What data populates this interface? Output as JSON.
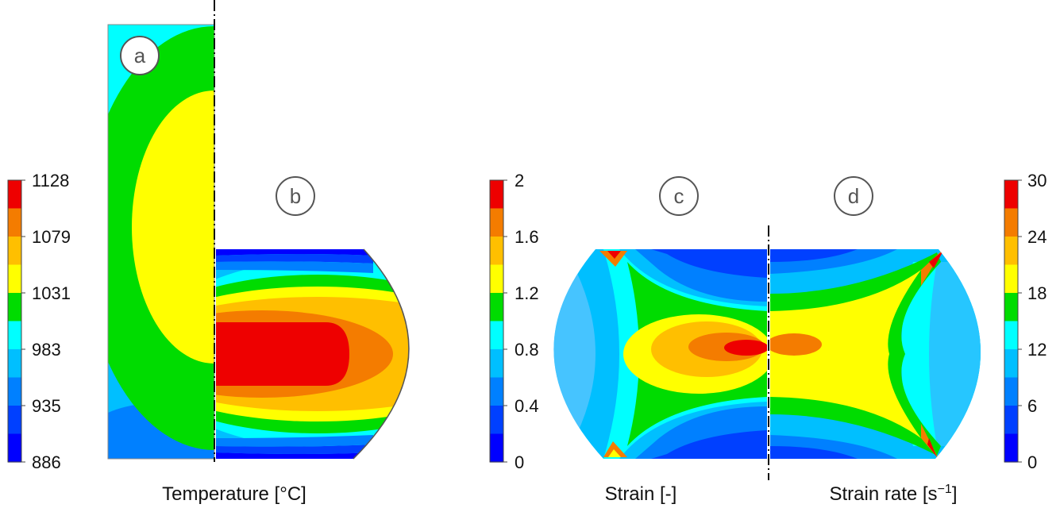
{
  "panels": {
    "a": "a",
    "b": "b",
    "c": "c",
    "d": "d"
  },
  "captions": {
    "temperature": "Temperature [°C]",
    "strain": "Strain [-]",
    "strain_rate_prefix": "Strain rate [s",
    "strain_rate_exp": "−1",
    "strain_rate_suffix": "]"
  },
  "temperature_scale": {
    "ticks": [
      "1128",
      "1079",
      "1031",
      "983",
      "935",
      "886"
    ],
    "colors": [
      "#ee0000",
      "#f47c00",
      "#ffbf00",
      "#ffff00",
      "#00dc00",
      "#00ffff",
      "#00bfff",
      "#0080ff",
      "#0040ff",
      "#0000ff"
    ]
  },
  "strain_scale": {
    "ticks": [
      "2",
      "1.6",
      "1.2",
      "0.8",
      "0.4",
      "0"
    ],
    "colors": [
      "#ee0000",
      "#f47c00",
      "#ffbf00",
      "#ffff00",
      "#00dc00",
      "#00ffff",
      "#00bfff",
      "#0080ff",
      "#0040ff",
      "#0000ff"
    ]
  },
  "strain_rate_scale": {
    "ticks": [
      "30",
      "24",
      "18",
      "12",
      "6",
      "0"
    ],
    "colors": [
      "#ee0000",
      "#f47c00",
      "#ffbf00",
      "#ffff00",
      "#00dc00",
      "#00ffff",
      "#00bfff",
      "#0080ff",
      "#0040ff",
      "#0000ff"
    ]
  }
}
